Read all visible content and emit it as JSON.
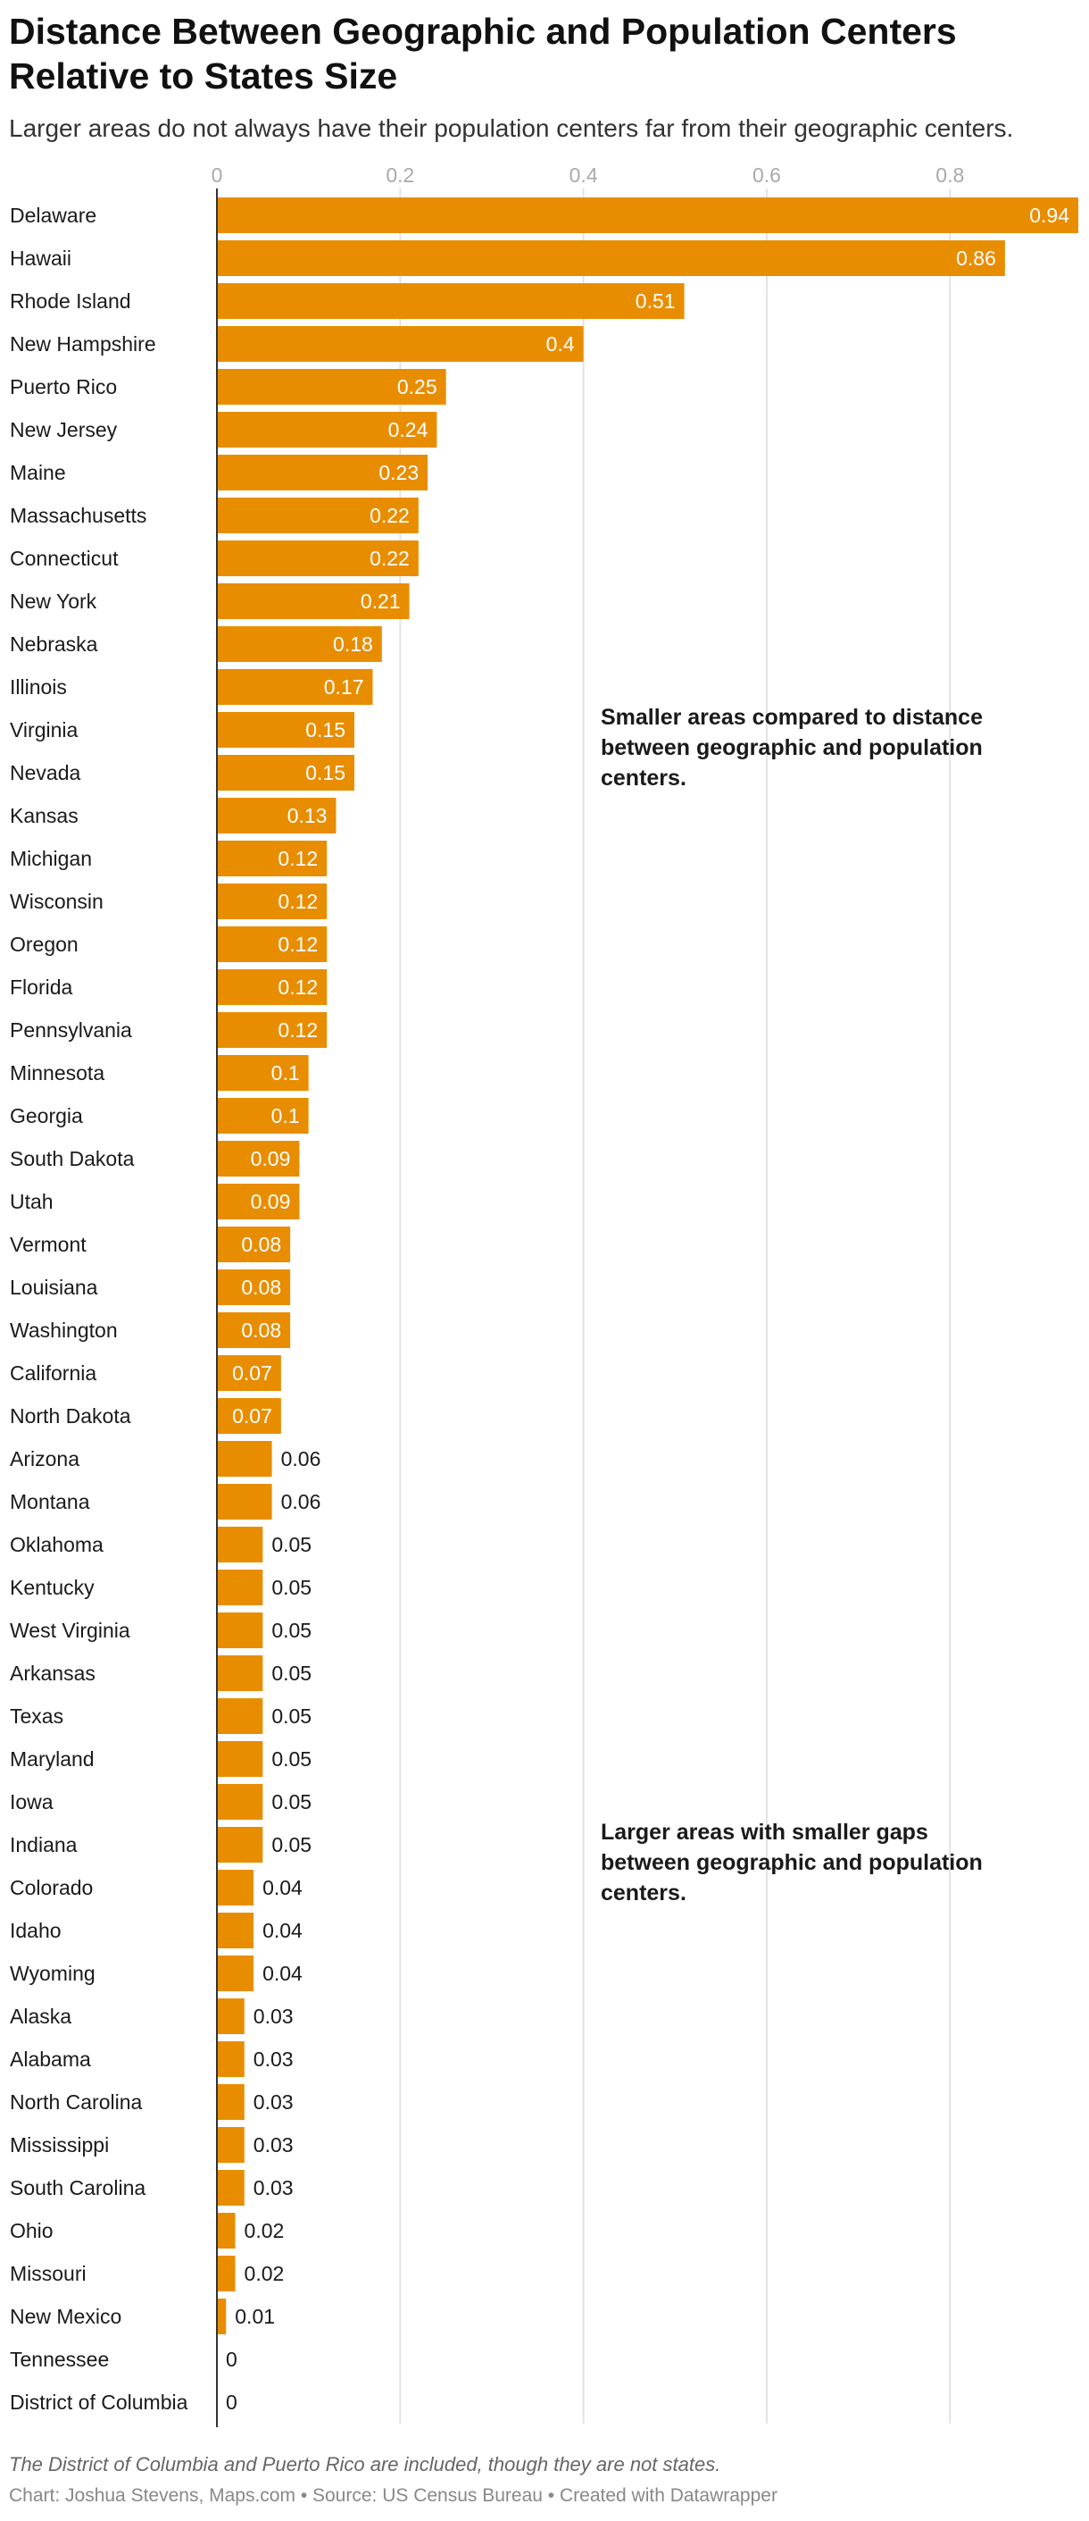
{
  "title": "Distance Between Geographic and Population Centers Relative to States Size",
  "subtitle": "Larger areas do not always have their population centers far from their geographic centers.",
  "footnote": "The District of Columbia and Puerto Rico are included, though they are not states.",
  "source": "Chart: Joshua Stevens, Maps.com • Source: US Census Bureau • Created with Datawrapper",
  "colors": {
    "bar": "#e98d00",
    "gridline": "#e3e3e3",
    "axis": "#333333",
    "tick_label": "#aaaaaa"
  },
  "chart_data": {
    "type": "bar",
    "orientation": "horizontal",
    "title": "Distance Between Geographic and Population Centers Relative to States Size",
    "xlabel": "",
    "ylabel": "",
    "xlim": [
      0,
      0.94
    ],
    "xticks": [
      0,
      0.2,
      0.4,
      0.6,
      0.8
    ],
    "xtick_labels": [
      "0",
      "0.2",
      "0.4",
      "0.6",
      "0.8"
    ],
    "grid": true,
    "categories": [
      "Delaware",
      "Hawaii",
      "Rhode Island",
      "New Hampshire",
      "Puerto Rico",
      "New Jersey",
      "Maine",
      "Massachusetts",
      "Connecticut",
      "New York",
      "Nebraska",
      "Illinois",
      "Virginia",
      "Nevada",
      "Kansas",
      "Michigan",
      "Wisconsin",
      "Oregon",
      "Florida",
      "Pennsylvania",
      "Minnesota",
      "Georgia",
      "South Dakota",
      "Utah",
      "Vermont",
      "Louisiana",
      "Washington",
      "California",
      "North Dakota",
      "Arizona",
      "Montana",
      "Oklahoma",
      "Kentucky",
      "West Virginia",
      "Arkansas",
      "Texas",
      "Maryland",
      "Iowa",
      "Indiana",
      "Colorado",
      "Idaho",
      "Wyoming",
      "Alaska",
      "Alabama",
      "North Carolina",
      "Mississippi",
      "South Carolina",
      "Ohio",
      "Missouri",
      "New Mexico",
      "Tennessee",
      "District of Columbia"
    ],
    "values": [
      0.94,
      0.86,
      0.51,
      0.4,
      0.25,
      0.24,
      0.23,
      0.22,
      0.22,
      0.21,
      0.18,
      0.17,
      0.15,
      0.15,
      0.13,
      0.12,
      0.12,
      0.12,
      0.12,
      0.12,
      0.1,
      0.1,
      0.09,
      0.09,
      0.08,
      0.08,
      0.08,
      0.07,
      0.07,
      0.06,
      0.06,
      0.05,
      0.05,
      0.05,
      0.05,
      0.05,
      0.05,
      0.05,
      0.05,
      0.04,
      0.04,
      0.04,
      0.03,
      0.03,
      0.03,
      0.03,
      0.03,
      0.02,
      0.02,
      0.01,
      0,
      0
    ],
    "value_labels": [
      "0.94",
      "0.86",
      "0.51",
      "0.4",
      "0.25",
      "0.24",
      "0.23",
      "0.22",
      "0.22",
      "0.21",
      "0.18",
      "0.17",
      "0.15",
      "0.15",
      "0.13",
      "0.12",
      "0.12",
      "0.12",
      "0.12",
      "0.12",
      "0.1",
      "0.1",
      "0.09",
      "0.09",
      "0.08",
      "0.08",
      "0.08",
      "0.07",
      "0.07",
      "0.06",
      "0.06",
      "0.05",
      "0.05",
      "0.05",
      "0.05",
      "0.05",
      "0.05",
      "0.05",
      "0.05",
      "0.04",
      "0.04",
      "0.04",
      "0.03",
      "0.03",
      "0.03",
      "0.03",
      "0.03",
      "0.02",
      "0.02",
      "0.01",
      "0",
      "0"
    ],
    "annotations": [
      {
        "lines": [
          "Smaller areas compared to distance",
          "between geographic and population",
          "centers."
        ],
        "anchor_category": "Virginia"
      },
      {
        "lines": [
          "Larger areas with smaller gaps",
          "between geographic and population",
          "centers."
        ],
        "anchor_category": "Indiana"
      }
    ]
  }
}
